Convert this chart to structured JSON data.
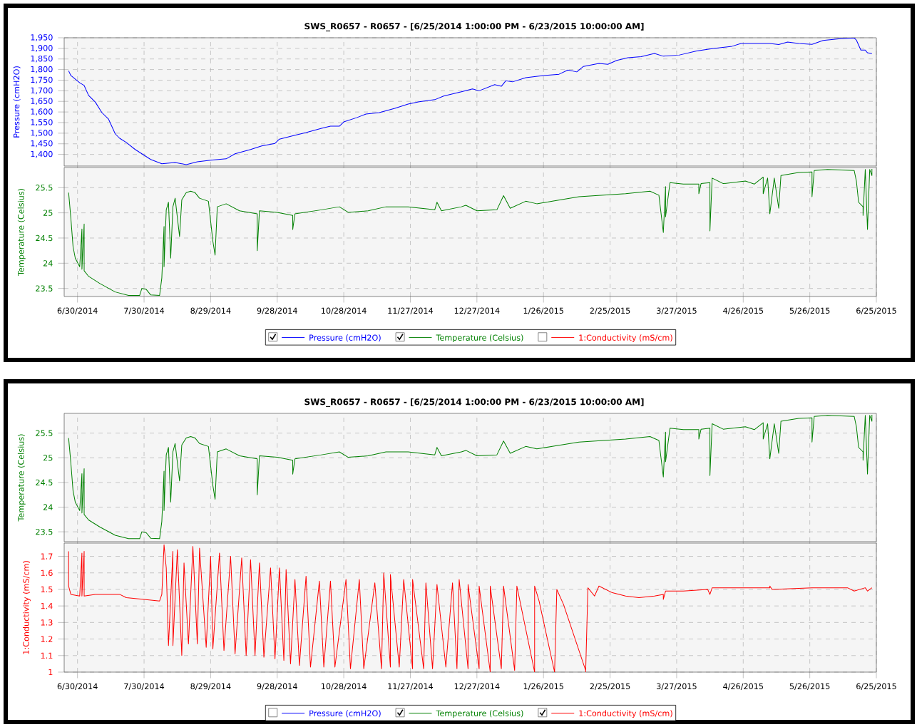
{
  "chart_data": [
    {
      "type": "line",
      "title": "SWS_R0657 - R0657 -  [6/25/2014 1:00:00 PM  -  6/23/2015 10:00:00 AM]",
      "ylabel": "Pressure (cmH2O)",
      "grid": true,
      "tick_labels": "y",
      "xlim": [
        "2014-06-24",
        "2015-06-25"
      ],
      "xticks": [
        {
          "value": "2014-06-30",
          "label": null
        },
        {
          "value": "2014-07-30",
          "label": null
        },
        {
          "value": "2014-08-29",
          "label": null
        },
        {
          "value": "2014-09-28",
          "label": null
        },
        {
          "value": "2014-10-28",
          "label": null
        },
        {
          "value": "2014-11-27",
          "label": null
        },
        {
          "value": "2014-12-27",
          "label": null
        },
        {
          "value": "2015-01-26",
          "label": null
        },
        {
          "value": "2015-02-25",
          "label": null
        },
        {
          "value": "2015-03-27",
          "label": null
        },
        {
          "value": "2015-04-26",
          "label": null
        },
        {
          "value": "2015-05-26",
          "label": null
        },
        {
          "value": "2015-06-25",
          "label": null
        }
      ],
      "ylim": [
        1345,
        1950
      ],
      "yticks": [
        {
          "value": 1400,
          "label": "1,400"
        },
        {
          "value": 1450,
          "label": "1,450"
        },
        {
          "value": 1500,
          "label": "1,500"
        },
        {
          "value": 1550,
          "label": "1,550"
        },
        {
          "value": 1600,
          "label": "1,600"
        },
        {
          "value": 1650,
          "label": "1,650"
        },
        {
          "value": 1700,
          "label": "1,700"
        },
        {
          "value": 1750,
          "label": "1,750"
        },
        {
          "value": 1800,
          "label": "1,800"
        },
        {
          "value": 1850,
          "label": "1,850"
        },
        {
          "value": 1900,
          "label": "1,900"
        },
        {
          "value": 1950,
          "label": "1,950"
        }
      ],
      "series": [
        {
          "color": "#0000ff",
          "x": [
            "2014-06-26",
            "2014-06-27",
            "2014-07-01",
            "2014-07-03",
            "2014-07-05",
            "2014-07-08",
            "2014-07-11",
            "2014-07-14",
            "2014-07-17",
            "2014-07-19",
            "2014-07-22",
            "2014-07-26",
            "2014-07-29",
            "2014-08-02",
            "2014-08-07",
            "2014-08-13",
            "2014-08-18",
            "2014-08-23",
            "2014-08-29",
            "2014-09-05",
            "2014-09-09",
            "2014-09-16",
            "2014-09-21",
            "2014-09-27",
            "2014-09-29",
            "2014-10-06",
            "2014-10-11",
            "2014-10-18",
            "2014-10-22",
            "2014-10-26",
            "2014-10-28",
            "2014-11-03",
            "2014-11-07",
            "2014-11-13",
            "2014-11-20",
            "2014-11-26",
            "2014-12-01",
            "2014-12-08",
            "2014-12-12",
            "2014-12-20",
            "2014-12-25",
            "2014-12-28",
            "2015-01-04",
            "2015-01-07",
            "2015-01-09",
            "2015-01-12",
            "2015-01-18",
            "2015-01-26",
            "2015-02-02",
            "2015-02-06",
            "2015-02-10",
            "2015-02-13",
            "2015-02-20",
            "2015-02-24",
            "2015-02-28",
            "2015-03-05",
            "2015-03-11",
            "2015-03-17",
            "2015-03-21",
            "2015-03-28",
            "2015-04-05",
            "2015-04-12",
            "2015-04-21",
            "2015-04-25",
            "2015-05-08",
            "2015-05-12",
            "2015-05-16",
            "2015-05-21",
            "2015-05-27",
            "2015-06-01",
            "2015-06-08",
            "2015-06-15",
            "2015-06-16",
            "2015-06-18",
            "2015-06-20",
            "2015-06-21",
            "2015-06-23"
          ],
          "values": [
            1794,
            1772,
            1738,
            1725,
            1678,
            1647,
            1597,
            1566,
            1497,
            1476,
            1456,
            1423,
            1403,
            1376,
            1356,
            1362,
            1352,
            1365,
            1373,
            1379,
            1403,
            1423,
            1440,
            1452,
            1472,
            1490,
            1503,
            1523,
            1533,
            1533,
            1553,
            1574,
            1590,
            1597,
            1617,
            1637,
            1648,
            1658,
            1675,
            1695,
            1709,
            1700,
            1729,
            1721,
            1747,
            1742,
            1762,
            1772,
            1778,
            1798,
            1789,
            1815,
            1829,
            1825,
            1843,
            1856,
            1861,
            1876,
            1863,
            1868,
            1888,
            1899,
            1910,
            1923,
            1923,
            1918,
            1930,
            1923,
            1919,
            1937,
            1945,
            1949,
            1939,
            1892,
            1892,
            1879,
            1875
          ]
        }
      ]
    },
    {
      "type": "line",
      "ylabel": "Temperature (Celsius)",
      "grid": true,
      "legend": "bottom",
      "xlim": [
        "2014-06-24",
        "2015-06-25"
      ],
      "xticks": [
        {
          "value": "2014-06-30",
          "label": "6/30/2014"
        },
        {
          "value": "2014-07-30",
          "label": "7/30/2014"
        },
        {
          "value": "2014-08-29",
          "label": "8/29/2014"
        },
        {
          "value": "2014-09-28",
          "label": "9/28/2014"
        },
        {
          "value": "2014-10-28",
          "label": "10/28/2014"
        },
        {
          "value": "2014-11-27",
          "label": "11/27/2014"
        },
        {
          "value": "2014-12-27",
          "label": "12/27/2014"
        },
        {
          "value": "2015-01-26",
          "label": "1/26/2015"
        },
        {
          "value": "2015-02-25",
          "label": "2/25/2015"
        },
        {
          "value": "2015-03-27",
          "label": "3/27/2015"
        },
        {
          "value": "2015-04-26",
          "label": "4/26/2015"
        },
        {
          "value": "2015-05-26",
          "label": "5/26/2015"
        },
        {
          "value": "2015-06-25",
          "label": "6/25/2015"
        }
      ],
      "ylim": [
        23.34,
        25.9
      ],
      "yticks": [
        23.5,
        24,
        24.5,
        25,
        25.5
      ],
      "series": [
        {
          "name": "Pressure (cmH2O)",
          "color": "#0000ff"
        },
        {
          "name": "Temperature (Celsius)",
          "color": "#008000",
          "x": [
            "2014-06-26",
            "2014-06-27",
            "2014-06-28",
            "2014-06-29",
            "2014-07-01",
            "2014-07-02",
            "2014-07-02",
            "2014-07-03",
            "2014-07-03",
            "2014-07-05",
            "2014-07-10",
            "2014-07-17",
            "2014-07-23",
            "2014-07-28",
            "2014-07-29",
            "2014-07-31",
            "2014-08-02",
            "2014-08-06",
            "2014-08-07",
            "2014-08-08",
            "2014-08-08",
            "2014-08-09",
            "2014-08-10",
            "2014-08-11",
            "2014-08-12",
            "2014-08-13",
            "2014-08-15",
            "2014-08-16",
            "2014-08-18",
            "2014-08-20",
            "2014-08-22",
            "2014-08-24",
            "2014-08-28",
            "2014-08-30",
            "2014-08-31",
            "2014-09-01",
            "2014-09-05",
            "2014-09-11",
            "2014-09-19",
            "2014-09-19",
            "2014-09-20",
            "2014-09-28",
            "2014-10-05",
            "2014-10-05",
            "2014-10-06",
            "2014-10-18",
            "2014-10-26",
            "2014-10-30",
            "2014-11-08",
            "2014-11-16",
            "2014-11-26",
            "2014-12-08",
            "2014-12-09",
            "2014-12-11",
            "2014-12-20",
            "2014-12-22",
            "2014-12-27",
            "2015-01-05",
            "2015-01-08",
            "2015-01-11",
            "2015-01-18",
            "2015-01-23",
            "2015-01-30",
            "2015-02-11",
            "2015-03-04",
            "2015-03-15",
            "2015-03-19",
            "2015-03-21",
            "2015-03-22",
            "2015-03-22",
            "2015-03-24",
            "2015-03-30",
            "2015-04-06",
            "2015-04-06",
            "2015-04-07",
            "2015-04-11",
            "2015-04-11",
            "2015-04-12",
            "2015-04-17",
            "2015-04-27",
            "2015-05-01",
            "2015-05-05",
            "2015-05-05",
            "2015-05-07",
            "2015-05-08",
            "2015-05-10",
            "2015-05-12",
            "2015-05-13",
            "2015-05-21",
            "2015-05-27",
            "2015-05-27",
            "2015-05-28",
            "2015-06-03",
            "2015-06-15",
            "2015-06-16",
            "2015-06-17",
            "2015-06-19",
            "2015-06-19",
            "2015-06-20",
            "2015-06-21",
            "2015-06-22",
            "2015-06-23",
            "2015-06-23"
          ],
          "values": [
            25.4,
            24.9,
            24.33,
            24.1,
            23.93,
            24.68,
            23.88,
            24.78,
            23.85,
            23.74,
            23.6,
            23.43,
            23.36,
            23.36,
            23.5,
            23.48,
            23.37,
            23.36,
            23.71,
            24.73,
            23.93,
            25.06,
            25.21,
            24.1,
            25.12,
            25.29,
            24.53,
            25.26,
            25.4,
            25.43,
            25.4,
            25.29,
            25.23,
            24.44,
            24.16,
            25.12,
            25.18,
            25.04,
            24.98,
            24.25,
            25.04,
            25.01,
            24.95,
            24.67,
            24.98,
            25.06,
            25.12,
            25.01,
            25.04,
            25.12,
            25.12,
            25.06,
            25.21,
            25.04,
            25.12,
            25.15,
            25.04,
            25.06,
            25.34,
            25.09,
            25.23,
            25.18,
            25.23,
            25.32,
            25.38,
            25.43,
            25.35,
            24.61,
            25.52,
            24.92,
            25.6,
            25.57,
            25.57,
            25.38,
            25.58,
            25.6,
            24.64,
            25.69,
            25.58,
            25.63,
            25.57,
            25.71,
            25.38,
            25.69,
            24.98,
            25.69,
            25.09,
            25.74,
            25.8,
            25.81,
            25.32,
            25.84,
            25.86,
            25.84,
            25.63,
            25.21,
            25.12,
            24.95,
            25.86,
            24.67,
            25.86,
            25.74,
            25.87
          ]
        },
        {
          "name": "1:Conductivity (mS/cm)",
          "color": "#ff0000"
        }
      ]
    },
    {
      "type": "line",
      "title": "SWS_R0657 - R0657 -  [6/25/2014 1:00:00 PM  -  6/23/2015 10:00:00 AM]",
      "ylabel": "Temperature (Celsius)",
      "grid": true,
      "tick_labels": "y",
      "xlim": [
        "2014-06-24",
        "2015-06-25"
      ],
      "xticks": [
        {
          "value": "2014-06-30",
          "label": null
        },
        {
          "value": "2014-07-30",
          "label": null
        },
        {
          "value": "2014-08-29",
          "label": null
        },
        {
          "value": "2014-09-28",
          "label": null
        },
        {
          "value": "2014-10-28",
          "label": null
        },
        {
          "value": "2014-11-27",
          "label": null
        },
        {
          "value": "2014-12-27",
          "label": null
        },
        {
          "value": "2015-01-26",
          "label": null
        },
        {
          "value": "2015-02-25",
          "label": null
        },
        {
          "value": "2015-03-27",
          "label": null
        },
        {
          "value": "2015-04-26",
          "label": null
        },
        {
          "value": "2015-05-26",
          "label": null
        },
        {
          "value": "2015-06-25",
          "label": null
        }
      ],
      "ylim": [
        23.3,
        25.9
      ],
      "yticks": [
        23.5,
        24,
        24.5,
        25,
        25.5
      ],
      "series": [
        {
          "color": "#008000",
          "x": [
            "2014-06-26",
            "2014-06-27",
            "2014-06-28",
            "2014-06-29",
            "2014-07-01",
            "2014-07-02",
            "2014-07-02",
            "2014-07-03",
            "2014-07-03",
            "2014-07-05",
            "2014-07-10",
            "2014-07-17",
            "2014-07-23",
            "2014-07-28",
            "2014-07-29",
            "2014-07-31",
            "2014-08-02",
            "2014-08-06",
            "2014-08-07",
            "2014-08-08",
            "2014-08-08",
            "2014-08-09",
            "2014-08-10",
            "2014-08-11",
            "2014-08-12",
            "2014-08-13",
            "2014-08-15",
            "2014-08-16",
            "2014-08-18",
            "2014-08-20",
            "2014-08-22",
            "2014-08-24",
            "2014-08-28",
            "2014-08-30",
            "2014-08-31",
            "2014-09-01",
            "2014-09-05",
            "2014-09-11",
            "2014-09-19",
            "2014-09-19",
            "2014-09-20",
            "2014-09-28",
            "2014-10-05",
            "2014-10-05",
            "2014-10-06",
            "2014-10-18",
            "2014-10-26",
            "2014-10-30",
            "2014-11-08",
            "2014-11-16",
            "2014-11-26",
            "2014-12-08",
            "2014-12-09",
            "2014-12-11",
            "2014-12-20",
            "2014-12-22",
            "2014-12-27",
            "2015-01-05",
            "2015-01-08",
            "2015-01-11",
            "2015-01-18",
            "2015-01-23",
            "2015-01-30",
            "2015-02-11",
            "2015-03-04",
            "2015-03-15",
            "2015-03-19",
            "2015-03-21",
            "2015-03-22",
            "2015-03-22",
            "2015-03-24",
            "2015-03-30",
            "2015-04-06",
            "2015-04-06",
            "2015-04-07",
            "2015-04-11",
            "2015-04-11",
            "2015-04-12",
            "2015-04-17",
            "2015-04-27",
            "2015-05-01",
            "2015-05-05",
            "2015-05-05",
            "2015-05-07",
            "2015-05-08",
            "2015-05-10",
            "2015-05-12",
            "2015-05-13",
            "2015-05-21",
            "2015-05-27",
            "2015-05-27",
            "2015-05-28",
            "2015-06-03",
            "2015-06-15",
            "2015-06-16",
            "2015-06-17",
            "2015-06-19",
            "2015-06-19",
            "2015-06-20",
            "2015-06-21",
            "2015-06-22",
            "2015-06-23",
            "2015-06-23"
          ],
          "values": [
            25.4,
            24.9,
            24.33,
            24.1,
            23.93,
            24.68,
            23.88,
            24.78,
            23.85,
            23.74,
            23.6,
            23.43,
            23.36,
            23.36,
            23.5,
            23.48,
            23.37,
            23.36,
            23.71,
            24.73,
            23.93,
            25.06,
            25.21,
            24.1,
            25.12,
            25.29,
            24.53,
            25.26,
            25.4,
            25.43,
            25.4,
            25.29,
            25.23,
            24.44,
            24.16,
            25.12,
            25.18,
            25.04,
            24.98,
            24.25,
            25.04,
            25.01,
            24.95,
            24.67,
            24.98,
            25.06,
            25.12,
            25.01,
            25.04,
            25.12,
            25.12,
            25.06,
            25.21,
            25.04,
            25.12,
            25.15,
            25.04,
            25.06,
            25.34,
            25.09,
            25.23,
            25.18,
            25.23,
            25.32,
            25.38,
            25.43,
            25.35,
            24.61,
            25.52,
            24.92,
            25.6,
            25.57,
            25.57,
            25.38,
            25.58,
            25.6,
            24.64,
            25.69,
            25.58,
            25.63,
            25.57,
            25.71,
            25.38,
            25.69,
            24.98,
            25.69,
            25.09,
            25.74,
            25.8,
            25.81,
            25.32,
            25.84,
            25.86,
            25.84,
            25.63,
            25.21,
            25.12,
            24.95,
            25.86,
            24.67,
            25.86,
            25.74,
            25.87
          ]
        }
      ]
    },
    {
      "type": "line",
      "ylabel": "1:Conductivity (mS/cm)",
      "grid": true,
      "legend": "bottom",
      "xlim": [
        "2014-06-24",
        "2015-06-25"
      ],
      "xticks": [
        {
          "value": "2014-06-30",
          "label": "6/30/2014"
        },
        {
          "value": "2014-07-30",
          "label": "7/30/2014"
        },
        {
          "value": "2014-08-29",
          "label": "8/29/2014"
        },
        {
          "value": "2014-09-28",
          "label": "9/28/2014"
        },
        {
          "value": "2014-10-28",
          "label": "10/28/2014"
        },
        {
          "value": "2014-11-27",
          "label": "11/27/2014"
        },
        {
          "value": "2014-12-27",
          "label": "12/27/2014"
        },
        {
          "value": "2015-01-26",
          "label": "1/26/2015"
        },
        {
          "value": "2015-02-25",
          "label": "2/25/2015"
        },
        {
          "value": "2015-03-27",
          "label": "3/27/2015"
        },
        {
          "value": "2015-04-26",
          "label": "4/26/2015"
        },
        {
          "value": "2015-05-26",
          "label": "5/26/2015"
        },
        {
          "value": "2015-06-25",
          "label": "6/25/2015"
        }
      ],
      "ylim": [
        1,
        1.78
      ],
      "yticks": [
        1,
        1.1,
        1.2,
        1.3,
        1.4,
        1.5,
        1.6,
        1.7
      ],
      "series": [
        {
          "name": "Pressure (cmH2O)",
          "color": "#0000ff"
        },
        {
          "name": "Temperature (Celsius)",
          "color": "#008000"
        },
        {
          "name": "1:Conductivity (mS/cm)",
          "color": "#ff0000",
          "x": [
            "2014-06-26",
            "2014-06-26",
            "2014-06-27",
            "2014-07-01",
            "2014-07-02",
            "2014-07-02",
            "2014-07-03",
            "2014-07-03",
            "2014-07-08",
            "2014-07-19",
            "2014-07-22",
            "2014-07-30",
            "2014-08-06",
            "2014-08-07",
            "2014-08-08",
            "2014-08-09",
            "2014-08-10",
            "2014-08-12",
            "2014-08-12",
            "2014-08-14",
            "2014-08-16",
            "2014-08-17",
            "2014-08-19",
            "2014-08-21",
            "2014-08-23",
            "2014-08-24",
            "2014-08-27",
            "2014-08-29",
            "2014-08-30",
            "2014-09-02",
            "2014-09-04",
            "2014-09-07",
            "2014-09-09",
            "2014-09-12",
            "2014-09-14",
            "2014-09-16",
            "2014-09-18",
            "2014-09-20",
            "2014-09-22",
            "2014-09-25",
            "2014-09-27",
            "2014-09-29",
            "2014-10-01",
            "2014-10-02",
            "2014-10-04",
            "2014-10-06",
            "2014-10-08",
            "2014-10-11",
            "2014-10-13",
            "2014-10-17",
            "2014-10-19",
            "2014-10-22",
            "2014-10-24",
            "2014-10-29",
            "2014-10-31",
            "2014-11-04",
            "2014-11-06",
            "2014-11-11",
            "2014-11-14",
            "2014-11-15",
            "2014-11-18",
            "2014-11-18",
            "2014-11-22",
            "2014-11-24",
            "2014-11-28",
            "2014-11-28",
            "2014-12-03",
            "2014-12-04",
            "2014-12-07",
            "2014-12-09",
            "2014-12-13",
            "2014-12-16",
            "2014-12-18",
            "2014-12-19",
            "2014-12-23",
            "2014-12-23",
            "2014-12-28",
            "2014-12-28",
            "2015-01-02",
            "2015-01-02",
            "2015-01-07",
            "2015-01-08",
            "2015-01-13",
            "2015-01-14",
            "2015-01-22",
            "2015-01-22",
            "2015-01-24",
            "2015-01-31",
            "2015-02-01",
            "2015-02-04",
            "2015-02-14",
            "2015-02-14",
            "2015-02-15",
            "2015-02-18",
            "2015-02-20",
            "2015-02-26",
            "2015-03-04",
            "2015-03-10",
            "2015-03-17",
            "2015-03-21",
            "2015-03-21",
            "2015-03-22",
            "2015-03-30",
            "2015-04-10",
            "2015-04-11",
            "2015-04-12",
            "2015-04-25",
            "2015-05-08",
            "2015-05-08",
            "2015-05-09",
            "2015-05-27",
            "2015-06-12",
            "2015-06-15",
            "2015-06-20",
            "2015-06-21",
            "2015-06-23"
          ],
          "values": [
            1.73,
            1.52,
            1.47,
            1.46,
            1.72,
            1.46,
            1.73,
            1.46,
            1.47,
            1.47,
            1.45,
            1.44,
            1.43,
            1.47,
            1.77,
            1.63,
            1.16,
            1.73,
            1.16,
            1.74,
            1.1,
            1.66,
            1.17,
            1.76,
            1.17,
            1.75,
            1.15,
            1.7,
            1.14,
            1.72,
            1.13,
            1.7,
            1.11,
            1.69,
            1.1,
            1.68,
            1.1,
            1.66,
            1.09,
            1.63,
            1.08,
            1.63,
            1.07,
            1.62,
            1.05,
            1.56,
            1.04,
            1.58,
            1.03,
            1.55,
            1.03,
            1.55,
            1.03,
            1.56,
            1.02,
            1.56,
            1.02,
            1.54,
            1.02,
            1.6,
            1.03,
            1.59,
            1.03,
            1.56,
            1.02,
            1.56,
            1.02,
            1.54,
            1.02,
            1.53,
            1.03,
            1.54,
            1.02,
            1.56,
            1.02,
            1.53,
            1.02,
            1.52,
            1.0,
            1.52,
            1.02,
            1.52,
            1.01,
            1.52,
            1.0,
            1.52,
            1.43,
            1.0,
            1.5,
            1.41,
            1.01,
            1.0,
            1.51,
            1.46,
            1.52,
            1.48,
            1.46,
            1.45,
            1.46,
            1.47,
            1.44,
            1.49,
            1.49,
            1.5,
            1.47,
            1.51,
            1.51,
            1.51,
            1.52,
            1.5,
            1.51,
            1.51,
            1.49,
            1.51,
            1.49,
            1.51
          ]
        }
      ]
    }
  ]
}
